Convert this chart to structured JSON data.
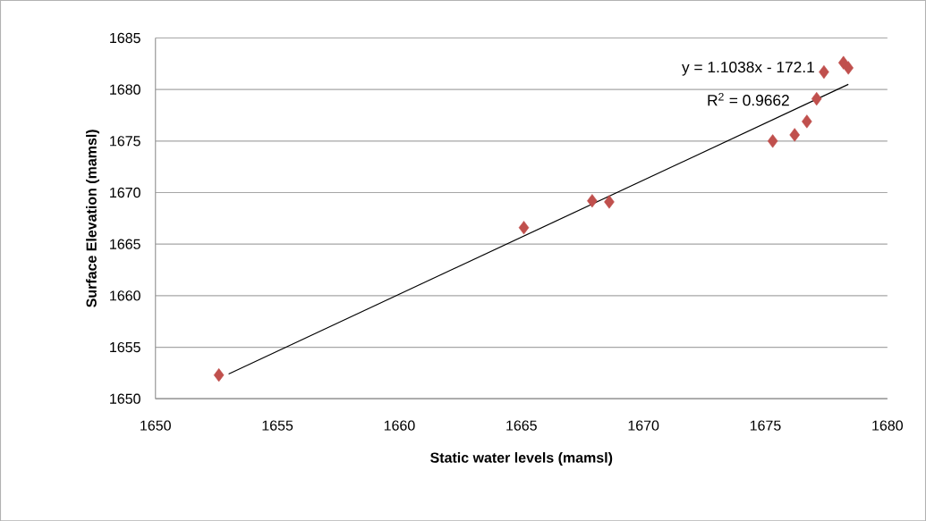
{
  "chart_data": {
    "type": "scatter",
    "xlabel": "Static water levels (mamsl)",
    "ylabel": "Surface Elevation (mamsl)",
    "x": [
      1652.6,
      1665.1,
      1667.9,
      1668.6,
      1675.3,
      1676.2,
      1676.7,
      1677.1,
      1677.4,
      1678.2,
      1678.4
    ],
    "series": [
      {
        "color": "#c0504d",
        "values": [
          1652.3,
          1666.6,
          1669.2,
          1669.1,
          1675.0,
          1675.6,
          1676.9,
          1679.1,
          1681.7,
          1682.6,
          1682.1
        ],
        "marker": "diamond"
      },
      {
        "type": "line",
        "color": "#000000",
        "x": [
          1653.0,
          1678.4
        ],
        "values": [
          1652.4,
          1680.5
        ],
        "marker": "none"
      }
    ],
    "annotations": [
      "y = 1.1038x - 172.1",
      "R$^{2}$ = 0.9662"
    ],
    "xlim": [
      1650,
      1680
    ],
    "ylim": [
      1650,
      1685
    ],
    "xticks": [
      1650,
      1655,
      1660,
      1665,
      1670,
      1675,
      1680
    ],
    "yticks": [
      1650,
      1655,
      1660,
      1665,
      1670,
      1675,
      1680,
      1685
    ],
    "grid": "y"
  }
}
